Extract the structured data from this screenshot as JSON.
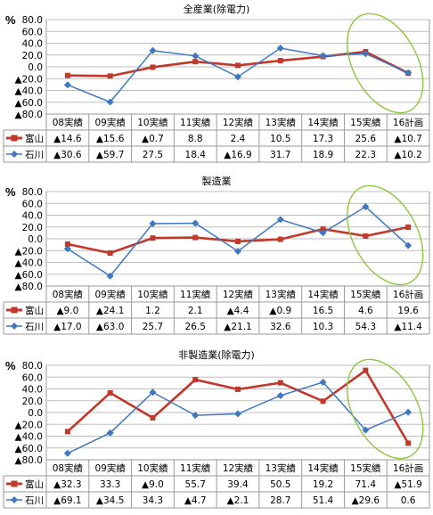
{
  "chart_data": [
    {
      "type": "line",
      "title": "全産業(除電力)",
      "y_unit": "%",
      "ylim": [
        -80,
        80
      ],
      "y_ticks": [
        "80.0",
        "60.0",
        "40.0",
        "20.0",
        "0.0",
        "▲20.0",
        "▲40.0",
        "▲60.0",
        "▲80.0"
      ],
      "categories": [
        "08実績",
        "09実績",
        "10実績",
        "11実績",
        "12実績",
        "13実績",
        "14実績",
        "15実績",
        "16計画"
      ],
      "series": [
        {
          "name": "富山",
          "color": "#c0392b",
          "values": [
            -14.6,
            -15.6,
            -0.7,
            8.8,
            2.4,
            10.5,
            17.3,
            25.6,
            -10.7
          ],
          "labels": [
            "▲14.6",
            "▲15.6",
            "▲0.7",
            "8.8",
            "2.4",
            "10.5",
            "17.3",
            "25.6",
            "▲10.7"
          ]
        },
        {
          "name": "石川",
          "color": "#3f77c0",
          "values": [
            -30.6,
            -59.7,
            27.5,
            18.4,
            -16.9,
            31.7,
            18.9,
            22.3,
            -10.2
          ],
          "labels": [
            "▲30.6",
            "▲59.7",
            "27.5",
            "18.4",
            "▲16.9",
            "31.7",
            "18.9",
            "22.3",
            "▲10.2"
          ]
        }
      ]
    },
    {
      "type": "line",
      "title": "製造業",
      "y_unit": "%",
      "ylim": [
        -80,
        80
      ],
      "y_ticks": [
        "80.0",
        "60.0",
        "40.0",
        "20.0",
        "0.0",
        "▲20.0",
        "▲40.0",
        "▲60.0",
        "▲80.0"
      ],
      "categories": [
        "08実績",
        "09実績",
        "10実績",
        "11実績",
        "12実績",
        "13実績",
        "14実績",
        "15実績",
        "16計画"
      ],
      "series": [
        {
          "name": "富山",
          "color": "#c0392b",
          "values": [
            -9.0,
            -24.1,
            1.2,
            2.1,
            -4.4,
            -0.9,
            16.5,
            4.6,
            19.6
          ],
          "labels": [
            "▲9.0",
            "▲24.1",
            "1.2",
            "2.1",
            "▲4.4",
            "▲0.9",
            "16.5",
            "4.6",
            "19.6"
          ]
        },
        {
          "name": "石川",
          "color": "#3f77c0",
          "values": [
            -17.0,
            -63.0,
            25.7,
            26.5,
            -21.1,
            32.6,
            10.3,
            54.3,
            -11.4
          ],
          "labels": [
            "▲17.0",
            "▲63.0",
            "25.7",
            "26.5",
            "▲21.1",
            "32.6",
            "10.3",
            "54.3",
            "▲11.4"
          ]
        }
      ]
    },
    {
      "type": "line",
      "title": "非製造業(除電力)",
      "y_unit": "%",
      "ylim": [
        -80,
        80
      ],
      "y_ticks": [
        "80.0",
        "60.0",
        "40.0",
        "20.0",
        "0.0",
        "▲20.0",
        "▲40.0",
        "▲60.0",
        "▲80.0"
      ],
      "categories": [
        "08実績",
        "09実績",
        "10実績",
        "11実績",
        "12実績",
        "13実績",
        "14実績",
        "15実績",
        "16計画"
      ],
      "series": [
        {
          "name": "富山",
          "color": "#c0392b",
          "values": [
            -32.3,
            33.3,
            -9.0,
            55.7,
            39.4,
            50.5,
            19.2,
            71.4,
            -51.9
          ],
          "labels": [
            "▲32.3",
            "33.3",
            "▲9.0",
            "55.7",
            "39.4",
            "50.5",
            "19.2",
            "71.4",
            "▲51.9"
          ]
        },
        {
          "name": "石川",
          "color": "#3f77c0",
          "values": [
            -69.1,
            -34.5,
            34.3,
            -4.7,
            -2.1,
            28.7,
            51.4,
            -29.6,
            0.6
          ],
          "labels": [
            "▲69.1",
            "▲34.5",
            "34.3",
            "▲4.7",
            "▲2.1",
            "28.7",
            "51.4",
            "▲29.6",
            "0.6"
          ]
        }
      ]
    }
  ],
  "highlight_color": "#8cc63f"
}
